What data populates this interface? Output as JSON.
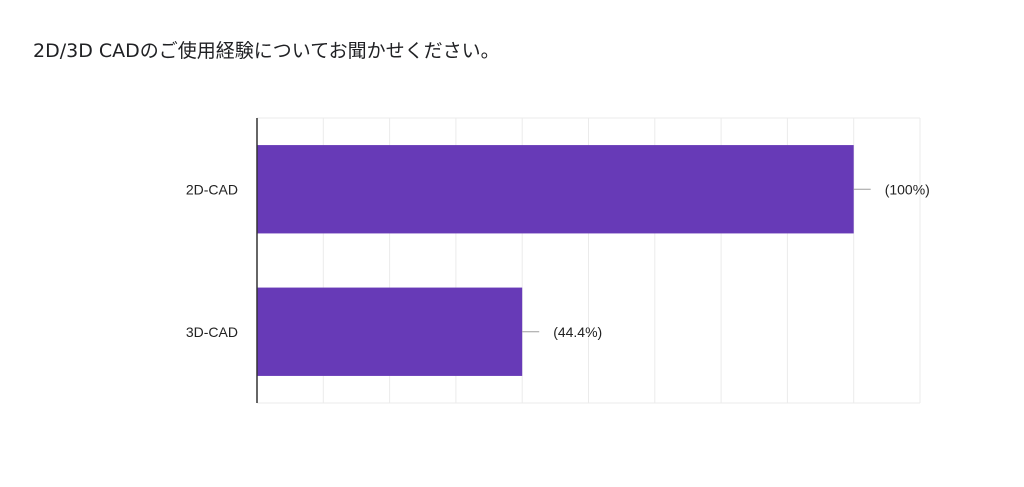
{
  "question": {
    "title": "2D/3D CADのご使用経験についてお聞かせください。"
  },
  "colors": {
    "bar": "#673ab7",
    "grid": "#ebebeb",
    "axis": "#333333",
    "leader": "#9e9e9e"
  },
  "chart_data": {
    "type": "bar",
    "orientation": "horizontal",
    "categories": [
      "2D-CAD",
      "3D-CAD"
    ],
    "value_labels": [
      "(100%)",
      "(44.4%)"
    ],
    "values": [
      9,
      4
    ],
    "xlim": [
      0,
      10
    ],
    "grid": true
  }
}
